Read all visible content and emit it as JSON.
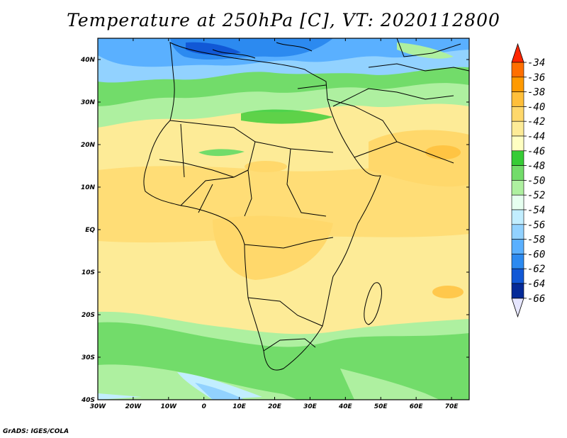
{
  "title": "Temperature at 250hPa [C], VT: 2020112800",
  "credit": "GrADS: IGES/COLA",
  "map": {
    "lon_range": [
      -30,
      75
    ],
    "lat_range": [
      -40,
      45
    ],
    "lon_ticks": [
      "30W",
      "20W",
      "10W",
      "0",
      "10E",
      "20E",
      "30E",
      "40E",
      "50E",
      "60E",
      "70E"
    ],
    "lat_ticks": [
      "40S",
      "30S",
      "20S",
      "10S",
      "EQ",
      "10N",
      "20N",
      "30N",
      "40N"
    ]
  },
  "colorbar": {
    "labels": [
      "-34",
      "-36",
      "-38",
      "-40",
      "-42",
      "-44",
      "-46",
      "-48",
      "-50",
      "-52",
      "-54",
      "-56",
      "-58",
      "-60",
      "-62",
      "-64",
      "-66"
    ],
    "colors": [
      "#ff2600",
      "#ff6f00",
      "#ff9a00",
      "#ffbf3a",
      "#ffd86b",
      "#fdeb97",
      "#ffffc2",
      "#36cc36",
      "#72dc6a",
      "#aef0a0",
      "#e6fff0",
      "#c2eeff",
      "#92d2ff",
      "#5ab0ff",
      "#2c8af0",
      "#1158d6",
      "#052a98",
      "#000066"
    ],
    "top_arrow_color": "#ff2600",
    "bottom_arrow_color": "#e6e6ff"
  }
}
